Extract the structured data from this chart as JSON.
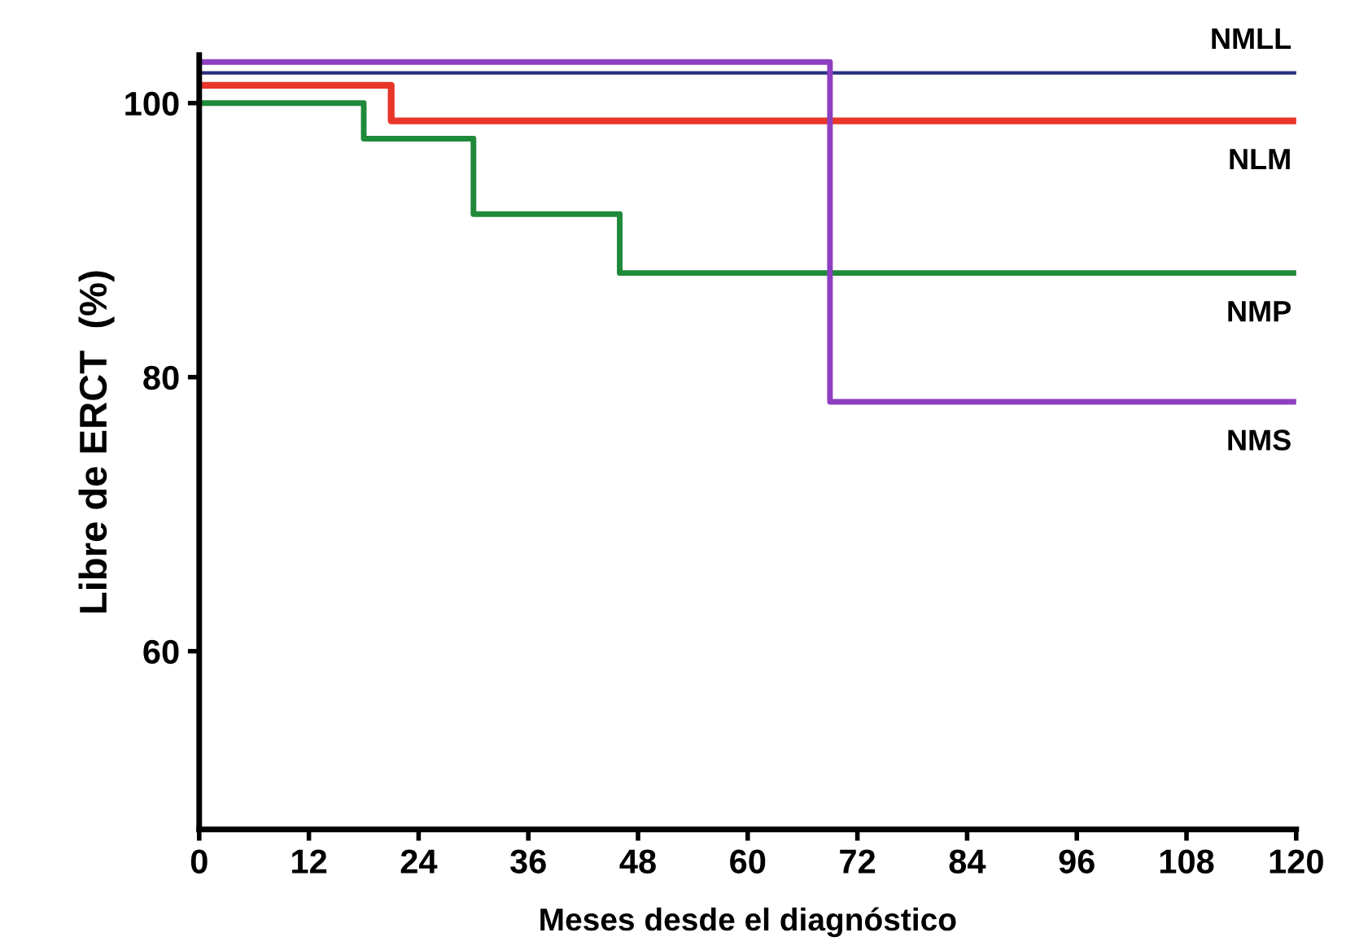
{
  "chart_data": {
    "type": "step",
    "xlabel": "Meses desde el diagnóstico",
    "ylabel": "Libre de ERCT  (%)",
    "xlim": [
      0,
      120
    ],
    "xticks": [
      0,
      12,
      24,
      36,
      48,
      60,
      72,
      84,
      96,
      108,
      120
    ],
    "ylim": [
      47,
      103.5
    ],
    "yticks": [
      60,
      80,
      100
    ],
    "grid": false,
    "legend": false,
    "series": [
      {
        "name": "NMLL",
        "color": "#2b2f80",
        "x": [
          0,
          120
        ],
        "values": [
          102.2,
          102.2
        ]
      },
      {
        "name": "NLM",
        "color": "#e8352a",
        "x": [
          0,
          21,
          120
        ],
        "values": [
          101.3,
          98.7,
          98.7
        ]
      },
      {
        "name": "NMP",
        "color": "#1f8a3a",
        "x": [
          0,
          18,
          30,
          46,
          120
        ],
        "values": [
          100,
          97.4,
          91.9,
          87.6,
          87.6
        ]
      },
      {
        "name": "NMS",
        "color": "#8e3fc0",
        "x": [
          0,
          69,
          120
        ],
        "values": [
          103,
          78.2,
          78.2
        ]
      }
    ]
  }
}
